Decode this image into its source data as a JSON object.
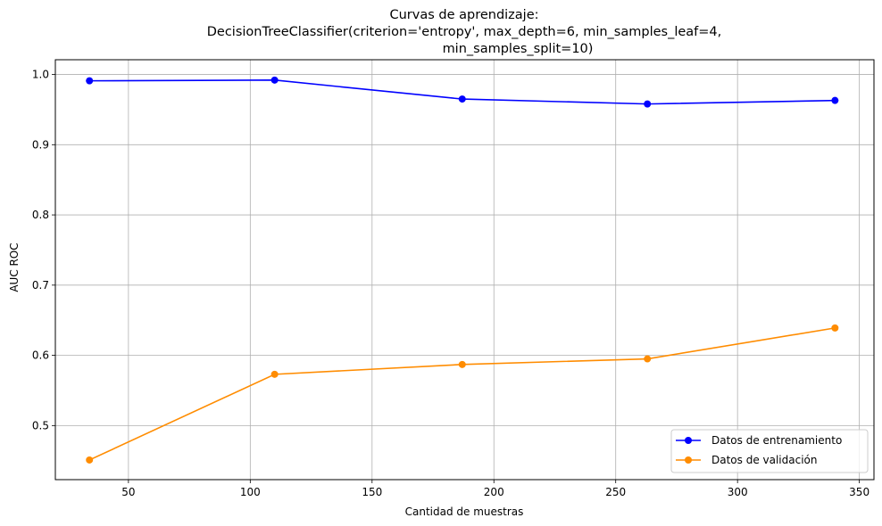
{
  "chart_data": {
    "type": "line",
    "title_lines": [
      "Curvas de aprendizaje:",
      "DecisionTreeClassifier(criterion='entropy', max_depth=6, min_samples_leaf=4,",
      "min_samples_split=10)"
    ],
    "xlabel": "Cantidad de muestras",
    "ylabel": "AUC ROC",
    "xlim": [
      20,
      356
    ],
    "ylim": [
      0.423,
      1.021
    ],
    "xticks": [
      50,
      100,
      150,
      200,
      250,
      300,
      350
    ],
    "yticks": [
      0.5,
      0.6,
      0.7,
      0.8,
      0.9,
      1.0
    ],
    "grid": true,
    "legend_position": "lower-right",
    "x": [
      34,
      110,
      187,
      263,
      340
    ],
    "series": [
      {
        "name": "Datos de entrenamiento",
        "color": "#0000ff",
        "values": [
          0.991,
          0.992,
          0.965,
          0.958,
          0.963
        ]
      },
      {
        "name": "Datos de validación",
        "color": "#ff8c00",
        "values": [
          0.451,
          0.573,
          0.587,
          0.595,
          0.639
        ]
      }
    ]
  }
}
